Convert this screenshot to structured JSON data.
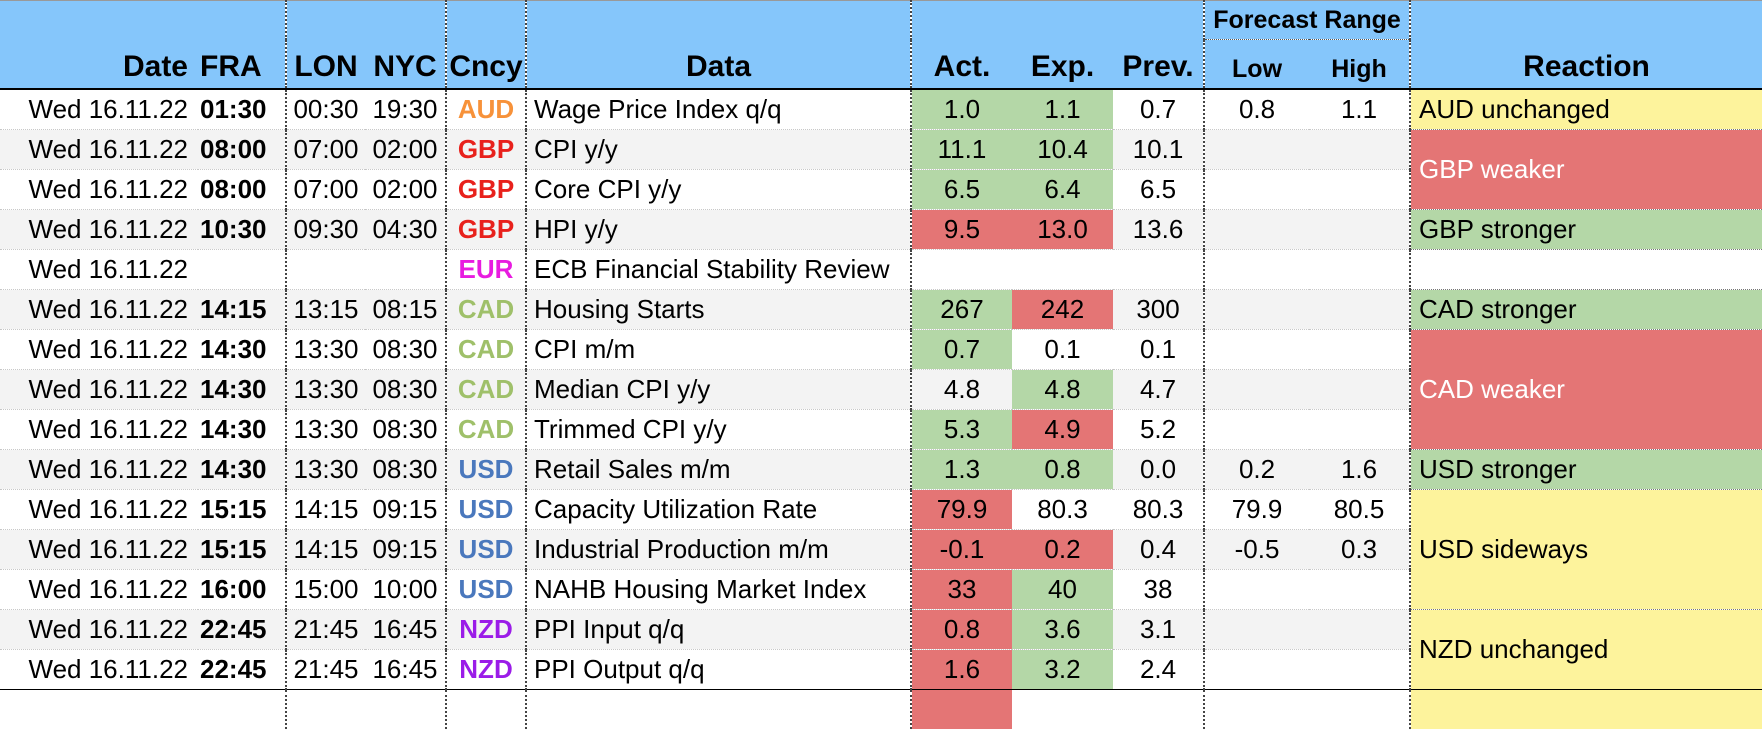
{
  "header": {
    "date": "Date",
    "fra": "FRA",
    "lon": "LON",
    "nyc": "NYC",
    "ccy": "Cncy",
    "data": "Data",
    "act": "Act.",
    "exp": "Exp.",
    "prev": "Prev.",
    "forecast_range": "Forecast Range",
    "low": "Low",
    "high": "High",
    "reaction": "Reaction"
  },
  "colors": {
    "header_bg": "#85c6fb",
    "green": "#b4d7a7",
    "red": "#e47575",
    "yellow": "#fdf39c",
    "AUD": "#f7923a",
    "GBP": "#e8211c",
    "EUR": "#e81ce0",
    "CAD": "#9fc06a",
    "USD": "#4a78bd",
    "NZD": "#9b1ce8"
  },
  "rows": [
    {
      "date": "Wed 16.11.22",
      "fra": "01:30",
      "lon": "00:30",
      "nyc": "19:30",
      "ccy": "AUD",
      "data": "Wage Price Index q/q",
      "act": "1.0",
      "exp": "1.1",
      "prev": "0.7",
      "low": "0.8",
      "high": "1.1"
    },
    {
      "date": "Wed 16.11.22",
      "fra": "08:00",
      "lon": "07:00",
      "nyc": "02:00",
      "ccy": "GBP",
      "data": "CPI y/y",
      "act": "11.1",
      "exp": "10.4",
      "prev": "10.1",
      "low": "",
      "high": ""
    },
    {
      "date": "Wed 16.11.22",
      "fra": "08:00",
      "lon": "07:00",
      "nyc": "02:00",
      "ccy": "GBP",
      "data": "Core CPI y/y",
      "act": "6.5",
      "exp": "6.4",
      "prev": "6.5",
      "low": "",
      "high": ""
    },
    {
      "date": "Wed 16.11.22",
      "fra": "10:30",
      "lon": "09:30",
      "nyc": "04:30",
      "ccy": "GBP",
      "data": "HPI y/y",
      "act": "9.5",
      "exp": "13.0",
      "prev": "13.6",
      "low": "",
      "high": ""
    },
    {
      "date": "Wed 16.11.22",
      "fra": "",
      "lon": "",
      "nyc": "",
      "ccy": "EUR",
      "data": "ECB Financial Stability Review",
      "act": "",
      "exp": "",
      "prev": "",
      "low": "",
      "high": ""
    },
    {
      "date": "Wed 16.11.22",
      "fra": "14:15",
      "lon": "13:15",
      "nyc": "08:15",
      "ccy": "CAD",
      "data": "Housing Starts",
      "act": "267",
      "exp": "242",
      "prev": "300",
      "low": "",
      "high": ""
    },
    {
      "date": "Wed 16.11.22",
      "fra": "14:30",
      "lon": "13:30",
      "nyc": "08:30",
      "ccy": "CAD",
      "data": "CPI m/m",
      "act": "0.7",
      "exp": "0.1",
      "prev": "0.1",
      "low": "",
      "high": ""
    },
    {
      "date": "Wed 16.11.22",
      "fra": "14:30",
      "lon": "13:30",
      "nyc": "08:30",
      "ccy": "CAD",
      "data": "Median CPI y/y",
      "act": "4.8",
      "exp": "4.8",
      "prev": "4.7",
      "low": "",
      "high": ""
    },
    {
      "date": "Wed 16.11.22",
      "fra": "14:30",
      "lon": "13:30",
      "nyc": "08:30",
      "ccy": "CAD",
      "data": "Trimmed CPI y/y",
      "act": "5.3",
      "exp": "4.9",
      "prev": "5.2",
      "low": "",
      "high": ""
    },
    {
      "date": "Wed 16.11.22",
      "fra": "14:30",
      "lon": "13:30",
      "nyc": "08:30",
      "ccy": "USD",
      "data": "Retail Sales m/m",
      "act": "1.3",
      "exp": "0.8",
      "prev": "0.0",
      "low": "0.2",
      "high": "1.6"
    },
    {
      "date": "Wed 16.11.22",
      "fra": "15:15",
      "lon": "14:15",
      "nyc": "09:15",
      "ccy": "USD",
      "data": "Capacity Utilization Rate",
      "act": "79.9",
      "exp": "80.3",
      "prev": "80.3",
      "low": "79.9",
      "high": "80.5"
    },
    {
      "date": "Wed 16.11.22",
      "fra": "15:15",
      "lon": "14:15",
      "nyc": "09:15",
      "ccy": "USD",
      "data": "Industrial Production m/m",
      "act": "-0.1",
      "exp": "0.2",
      "prev": "0.4",
      "low": "-0.5",
      "high": "0.3"
    },
    {
      "date": "Wed 16.11.22",
      "fra": "16:00",
      "lon": "15:00",
      "nyc": "10:00",
      "ccy": "USD",
      "data": "NAHB Housing Market Index",
      "act": "33",
      "exp": "40",
      "prev": "38",
      "low": "",
      "high": ""
    },
    {
      "date": "Wed 16.11.22",
      "fra": "22:45",
      "lon": "21:45",
      "nyc": "16:45",
      "ccy": "NZD",
      "data": "PPI Input q/q",
      "act": "0.8",
      "exp": "3.6",
      "prev": "3.1",
      "low": "",
      "high": ""
    },
    {
      "date": "Wed 16.11.22",
      "fra": "22:45",
      "lon": "21:45",
      "nyc": "16:45",
      "ccy": "NZD",
      "data": "PPI Output q/q",
      "act": "1.6",
      "exp": "3.2",
      "prev": "2.4",
      "low": "",
      "high": ""
    }
  ],
  "act_colors": [
    "green",
    "green",
    "green",
    "red",
    "",
    "green",
    "green",
    "",
    "green",
    "green",
    "red",
    "red",
    "red",
    "red",
    "red"
  ],
  "exp_colors": [
    "green",
    "green",
    "green",
    "red",
    "",
    "red",
    "",
    "green",
    "red",
    "green",
    "",
    "red",
    "green",
    "green",
    "green"
  ],
  "reactions": [
    {
      "text": "AUD unchanged",
      "span": 1,
      "color": "yellow"
    },
    {
      "text": "GBP weaker",
      "span": 2,
      "color": "red"
    },
    {
      "text": "GBP stronger",
      "span": 1,
      "color": "green"
    },
    {
      "text": "",
      "span": 1,
      "color": ""
    },
    {
      "text": "CAD stronger",
      "span": 1,
      "color": "green"
    },
    {
      "text": "CAD weaker",
      "span": 3,
      "color": "red"
    },
    {
      "text": "USD stronger",
      "span": 1,
      "color": "green"
    },
    {
      "text": "USD sideways",
      "span": 3,
      "color": "yellow"
    },
    {
      "text": "NZD unchanged",
      "span": 2,
      "color": "yellow"
    }
  ]
}
